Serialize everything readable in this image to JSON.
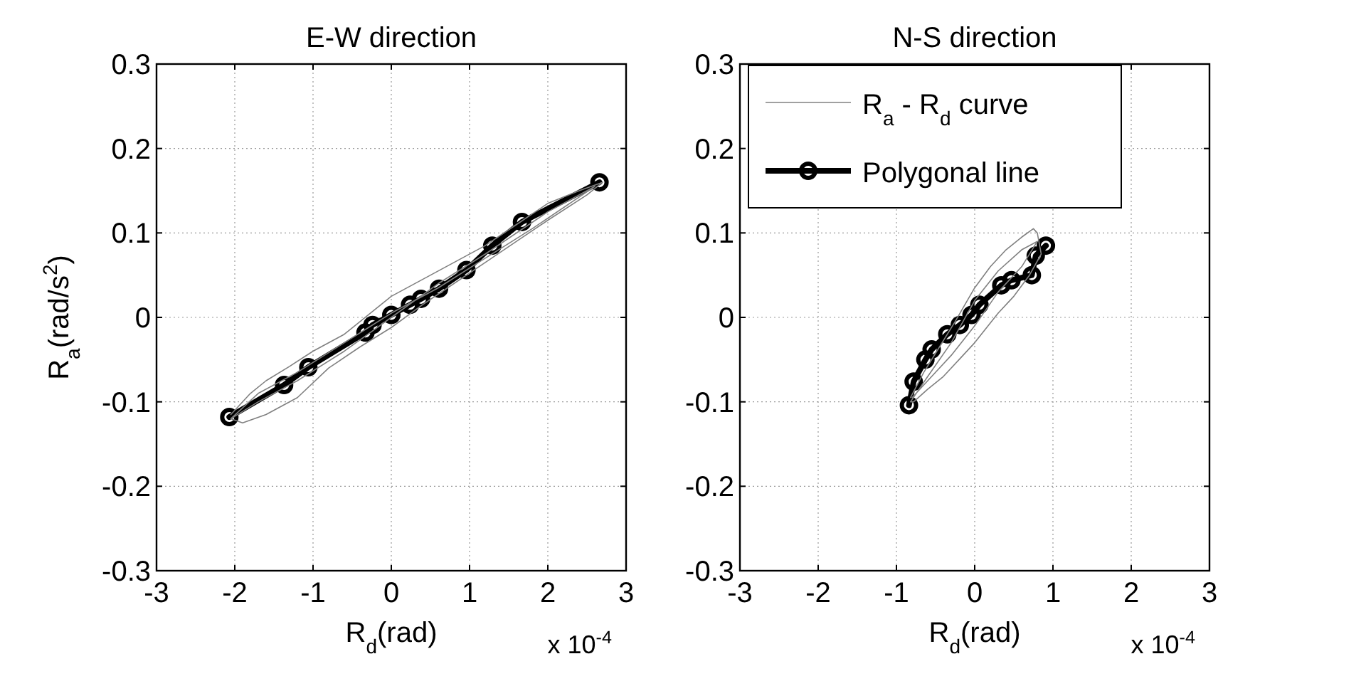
{
  "chart_data": [
    {
      "type": "line",
      "title": "E-W direction",
      "xlabel": "R$_{d}$(rad)",
      "ylabel": "R$_{a}$(rad/s$^{2}$)",
      "annotations": [
        "x 10$^{-4}$"
      ],
      "xlim": [
        -3,
        3
      ],
      "ylim": [
        -0.3,
        0.3
      ],
      "xticks": [
        -3,
        -2,
        -1,
        0,
        1,
        2,
        3
      ],
      "yticks": [
        -0.3,
        -0.2,
        -0.1,
        0,
        0.1,
        0.2,
        0.3
      ],
      "grid": true,
      "legend": false,
      "series": [
        {
          "color": "#808080",
          "line_style": "solid",
          "marker": "none",
          "x": [
            -2.05,
            -1.8,
            -1.6,
            -1.3,
            -1.0,
            -0.6,
            -0.2,
            0,
            0.4,
            0.8,
            1.2,
            1.6,
            2.0,
            2.4,
            2.7,
            2.5,
            2.0,
            1.6,
            1.2,
            0.8,
            0.4,
            0,
            -0.4,
            -0.8,
            -1.2,
            -1.6,
            -1.9,
            -2.05,
            -1.7,
            -1.2,
            -0.6,
            0,
            0.6,
            1.2,
            1.8,
            2.6,
            2.0,
            1.2,
            0.6,
            0,
            -0.6,
            -1.2,
            -1.7,
            -2.05
          ],
          "values": [
            -0.115,
            -0.09,
            -0.075,
            -0.058,
            -0.04,
            -0.02,
            0.01,
            0.025,
            0.045,
            0.065,
            0.085,
            0.11,
            0.135,
            0.15,
            0.16,
            0.145,
            0.115,
            0.09,
            0.065,
            0.04,
            0.015,
            -0.012,
            -0.035,
            -0.06,
            -0.095,
            -0.115,
            -0.125,
            -0.12,
            -0.09,
            -0.065,
            -0.03,
            0.005,
            0.035,
            0.07,
            0.105,
            0.155,
            0.125,
            0.075,
            0.04,
            0.0,
            -0.04,
            -0.075,
            -0.1,
            -0.12
          ]
        },
        {
          "color": "#000000",
          "line_style": "solid",
          "marker": "circle",
          "x": [
            -2.07,
            -1.37,
            -1.06,
            -0.33,
            -0.24,
            0,
            0.24,
            0.38,
            0.61,
            0.96,
            1.29,
            1.67,
            2.66
          ],
          "values": [
            -0.118,
            -0.08,
            -0.059,
            -0.018,
            -0.009,
            0.003,
            0.015,
            0.022,
            0.034,
            0.056,
            0.085,
            0.113,
            0.16
          ]
        }
      ]
    },
    {
      "type": "line",
      "title": "N-S direction",
      "xlabel": "R$_{d}$(rad)",
      "annotations": [
        "x 10$^{-4}$"
      ],
      "xlim": [
        -3,
        3
      ],
      "ylim": [
        -0.3,
        0.3
      ],
      "xticks": [
        -3,
        -2,
        -1,
        0,
        1,
        2,
        3
      ],
      "yticks": [
        -0.3,
        -0.2,
        -0.1,
        0,
        0.1,
        0.2,
        0.3
      ],
      "grid": true,
      "legend": "top left",
      "series": [
        {
          "name": "R$_{a}$ - R$_{d}$ curve",
          "color": "#808080",
          "line_style": "solid",
          "marker": "none",
          "x": [
            -0.82,
            -0.65,
            -0.45,
            -0.25,
            0,
            0.2,
            0.4,
            0.6,
            0.75,
            0.8,
            0.85,
            0.7,
            0.5,
            0.3,
            0,
            -0.2,
            -0.4,
            -0.6,
            -0.78,
            -0.82,
            -0.6,
            -0.3,
            0,
            0.3,
            0.6,
            0.8,
            0.6,
            0.3,
            0,
            -0.3,
            -0.6,
            -0.8
          ],
          "values": [
            -0.095,
            -0.065,
            -0.035,
            -0.005,
            0.035,
            0.06,
            0.08,
            0.095,
            0.105,
            0.1,
            0.075,
            0.05,
            0.025,
            0.005,
            -0.03,
            -0.05,
            -0.07,
            -0.085,
            -0.1,
            -0.1,
            -0.07,
            -0.03,
            0.02,
            0.055,
            0.08,
            0.09,
            0.06,
            0.03,
            -0.01,
            -0.045,
            -0.075,
            -0.095
          ]
        },
        {
          "name": "Polygonal line",
          "color": "#000000",
          "line_style": "solid",
          "marker": "circle",
          "x": [
            -0.84,
            -0.78,
            -0.63,
            -0.55,
            -0.35,
            -0.19,
            -0.04,
            0.06,
            0.34,
            0.47,
            0.73,
            0.78,
            0.91
          ],
          "values": [
            -0.104,
            -0.076,
            -0.05,
            -0.038,
            -0.02,
            -0.009,
            0.003,
            0.015,
            0.038,
            0.044,
            0.05,
            0.073,
            0.085
          ]
        }
      ]
    }
  ]
}
